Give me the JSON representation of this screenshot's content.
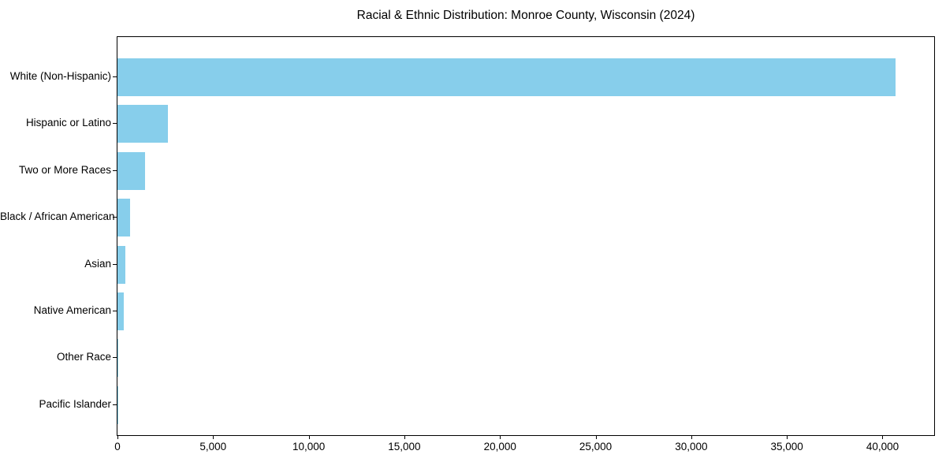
{
  "title": "Racial & Ethnic Distribution: Monroe County, Wisconsin (2024)",
  "chart_data": {
    "type": "bar",
    "orientation": "horizontal",
    "title": "Racial & Ethnic Distribution: Monroe County, Wisconsin (2024)",
    "xlabel": "",
    "ylabel": "",
    "categories": [
      "White (Non-Hispanic)",
      "Hispanic or Latino",
      "Two or More Races",
      "Black / African American",
      "Asian",
      "Native American",
      "Other Race",
      "Pacific Islander"
    ],
    "values": [
      40700,
      2640,
      1430,
      670,
      430,
      350,
      50,
      20
    ],
    "bar_color": "#87ceeb",
    "xlim": [
      0,
      42700
    ],
    "x_ticks": [
      {
        "value": 0,
        "label": "0"
      },
      {
        "value": 5000,
        "label": "5,000"
      },
      {
        "value": 10000,
        "label": "10,000"
      },
      {
        "value": 15000,
        "label": "15,000"
      },
      {
        "value": 20000,
        "label": "20,000"
      },
      {
        "value": 25000,
        "label": "25,000"
      },
      {
        "value": 30000,
        "label": "30,000"
      },
      {
        "value": 35000,
        "label": "35,000"
      },
      {
        "value": 40000,
        "label": "40,000"
      }
    ],
    "grid": false,
    "legend": null
  }
}
